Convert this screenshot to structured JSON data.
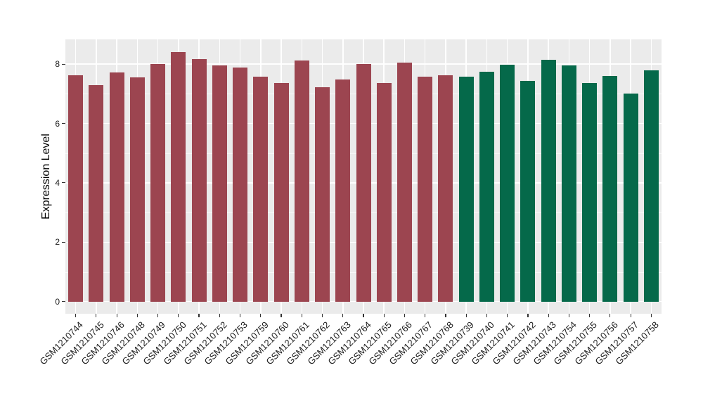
{
  "chart_data": {
    "type": "bar",
    "title": "",
    "xlabel": "",
    "ylabel": "Expression Level",
    "ylim": [
      0,
      8.87
    ],
    "yticks": [
      0,
      2,
      4,
      6,
      8
    ],
    "yticks_minor": [
      1,
      3,
      5,
      7
    ],
    "grid": true,
    "legend_position": "none",
    "panel_background": "#EBEBEB",
    "gridline_color": "#FFFFFF",
    "axis_text_color": "#1A1A1A",
    "tick_mark_color": "#333333",
    "group_colors": {
      "group1": "#9C4550",
      "group2": "#05694A"
    },
    "bars": [
      {
        "label": "GSM1210744",
        "value": 7.63,
        "group": "group1"
      },
      {
        "label": "GSM1210745",
        "value": 7.3,
        "group": "group1"
      },
      {
        "label": "GSM1210746",
        "value": 7.72,
        "group": "group1"
      },
      {
        "label": "GSM1210748",
        "value": 7.55,
        "group": "group1"
      },
      {
        "label": "GSM1210749",
        "value": 8.0,
        "group": "group1"
      },
      {
        "label": "GSM1210750",
        "value": 8.41,
        "group": "group1"
      },
      {
        "label": "GSM1210751",
        "value": 8.16,
        "group": "group1"
      },
      {
        "label": "GSM1210752",
        "value": 7.95,
        "group": "group1"
      },
      {
        "label": "GSM1210753",
        "value": 7.88,
        "group": "group1"
      },
      {
        "label": "GSM1210759",
        "value": 7.57,
        "group": "group1"
      },
      {
        "label": "GSM1210760",
        "value": 7.36,
        "group": "group1"
      },
      {
        "label": "GSM1210761",
        "value": 8.13,
        "group": "group1"
      },
      {
        "label": "GSM1210762",
        "value": 7.22,
        "group": "group1"
      },
      {
        "label": "GSM1210763",
        "value": 7.49,
        "group": "group1"
      },
      {
        "label": "GSM1210764",
        "value": 8.0,
        "group": "group1"
      },
      {
        "label": "GSM1210765",
        "value": 7.37,
        "group": "group1"
      },
      {
        "label": "GSM1210766",
        "value": 8.04,
        "group": "group1"
      },
      {
        "label": "GSM1210767",
        "value": 7.58,
        "group": "group1"
      },
      {
        "label": "GSM1210768",
        "value": 7.62,
        "group": "group1"
      },
      {
        "label": "GSM1210739",
        "value": 7.58,
        "group": "group2"
      },
      {
        "label": "GSM1210740",
        "value": 7.73,
        "group": "group2"
      },
      {
        "label": "GSM1210741",
        "value": 7.97,
        "group": "group2"
      },
      {
        "label": "GSM1210742",
        "value": 7.43,
        "group": "group2"
      },
      {
        "label": "GSM1210743",
        "value": 8.14,
        "group": "group2"
      },
      {
        "label": "GSM1210754",
        "value": 7.95,
        "group": "group2"
      },
      {
        "label": "GSM1210755",
        "value": 7.36,
        "group": "group2"
      },
      {
        "label": "GSM1210756",
        "value": 7.6,
        "group": "group2"
      },
      {
        "label": "GSM1210757",
        "value": 7.01,
        "group": "group2"
      },
      {
        "label": "GSM1210758",
        "value": 7.79,
        "group": "group2"
      }
    ]
  }
}
